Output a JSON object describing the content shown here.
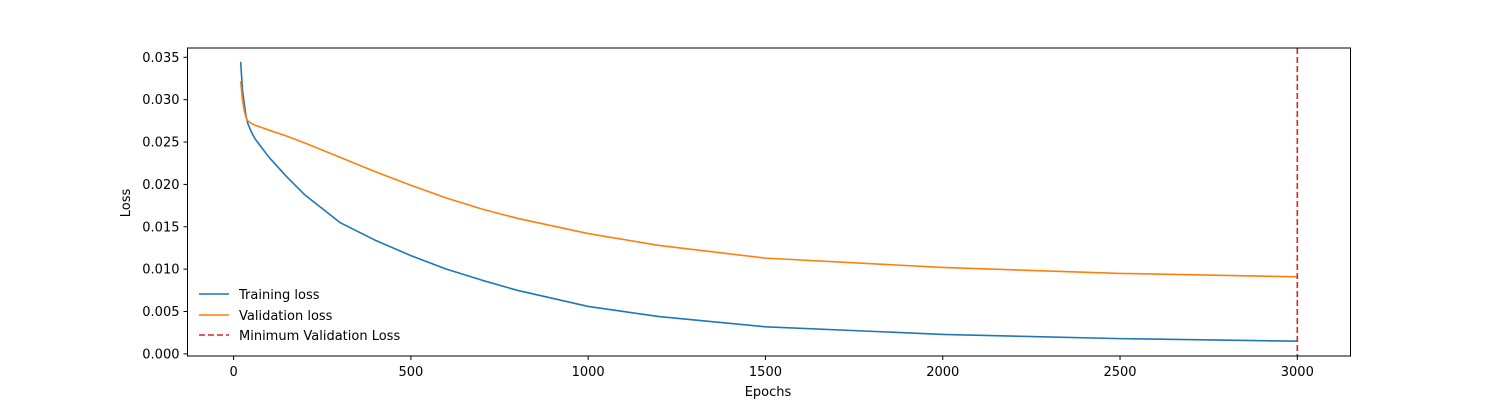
{
  "chart_data": {
    "type": "line",
    "title": "",
    "xlabel": "Epochs",
    "ylabel": "Loss",
    "xlim": [
      -130,
      3150
    ],
    "ylim": [
      -0.00025,
      0.0361
    ],
    "xticks": [
      0,
      500,
      1000,
      1500,
      2000,
      2500,
      3000
    ],
    "xtick_labels": [
      "0",
      "500",
      "1000",
      "1500",
      "2000",
      "2500",
      "3000"
    ],
    "yticks": [
      0.0,
      0.005,
      0.01,
      0.015,
      0.02,
      0.025,
      0.03,
      0.035
    ],
    "ytick_labels": [
      "0.000",
      "0.005",
      "0.010",
      "0.015",
      "0.020",
      "0.025",
      "0.030",
      "0.035"
    ],
    "grid": false,
    "legend_position": "lower-left",
    "series": [
      {
        "name": "Training loss",
        "color": "#1f77b4",
        "x": [
          20,
          25,
          30,
          35,
          40,
          50,
          60,
          80,
          100,
          150,
          200,
          300,
          400,
          500,
          600,
          700,
          800,
          1000,
          1200,
          1500,
          2000,
          2500,
          3000
        ],
        "y": [
          0.0344,
          0.0312,
          0.0295,
          0.0281,
          0.0272,
          0.0262,
          0.0254,
          0.0243,
          0.0232,
          0.0209,
          0.0188,
          0.0155,
          0.0134,
          0.0116,
          0.01,
          0.0087,
          0.0075,
          0.0056,
          0.0044,
          0.0032,
          0.0023,
          0.0018,
          0.0015
        ]
      },
      {
        "name": "Validation loss",
        "color": "#ff7f0e",
        "x": [
          20,
          25,
          30,
          35,
          40,
          50,
          60,
          80,
          100,
          150,
          200,
          300,
          400,
          500,
          600,
          700,
          800,
          1000,
          1200,
          1500,
          2000,
          2500,
          3000
        ],
        "y": [
          0.0321,
          0.03,
          0.0287,
          0.0279,
          0.0275,
          0.0272,
          0.027,
          0.0267,
          0.0264,
          0.0257,
          0.0249,
          0.0232,
          0.0215,
          0.0199,
          0.0184,
          0.0171,
          0.016,
          0.0142,
          0.0128,
          0.0113,
          0.0102,
          0.0095,
          0.0091
        ]
      }
    ],
    "vlines": [
      {
        "name": "Minimum Validation Loss",
        "x": 3000,
        "color": "#d62728",
        "dashed": true
      }
    ]
  }
}
